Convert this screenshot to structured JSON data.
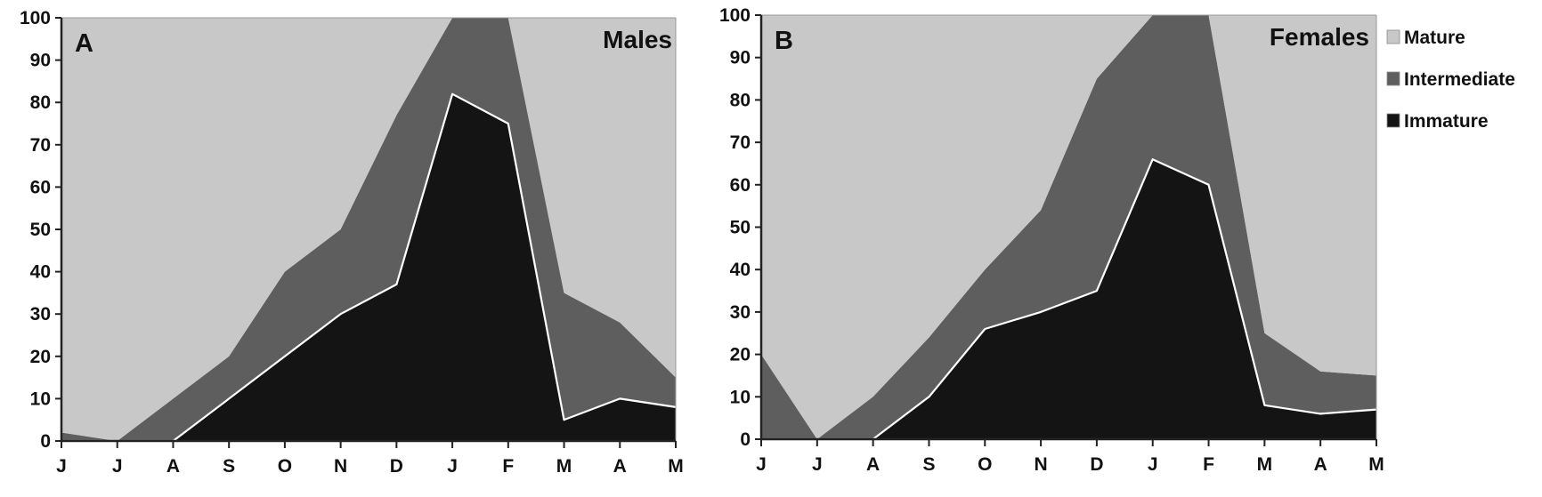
{
  "chart_data": [
    {
      "type": "area",
      "stacked": true,
      "panel_label": "A",
      "title": "Males",
      "categories": [
        "J",
        "J",
        "A",
        "S",
        "O",
        "N",
        "D",
        "J",
        "F",
        "M",
        "A",
        "M"
      ],
      "ylim": [
        0,
        100
      ],
      "yticks": [
        0,
        10,
        20,
        30,
        40,
        50,
        60,
        70,
        80,
        90,
        100
      ],
      "grid": false,
      "series": [
        {
          "name": "Immature",
          "color": "#141414",
          "values": [
            0,
            0,
            0,
            10,
            20,
            30,
            37,
            82,
            75,
            5,
            10,
            8
          ]
        },
        {
          "name": "Intermediate",
          "color": "#5e5e5e",
          "values": [
            2,
            0,
            10,
            10,
            20,
            20,
            40,
            18,
            25,
            30,
            18,
            7
          ]
        },
        {
          "name": "Mature",
          "color": "#c8c8c8",
          "values": [
            98,
            100,
            90,
            80,
            60,
            50,
            23,
            0,
            0,
            65,
            72,
            85
          ]
        }
      ]
    },
    {
      "type": "area",
      "stacked": true,
      "panel_label": "B",
      "title": "Females",
      "categories": [
        "J",
        "J",
        "A",
        "S",
        "O",
        "N",
        "D",
        "J",
        "F",
        "M",
        "A",
        "M"
      ],
      "ylim": [
        0,
        100
      ],
      "yticks": [
        0,
        10,
        20,
        30,
        40,
        50,
        60,
        70,
        80,
        90,
        100
      ],
      "grid": false,
      "series": [
        {
          "name": "Immature",
          "color": "#141414",
          "values": [
            0,
            0,
            0,
            10,
            26,
            30,
            35,
            66,
            60,
            8,
            6,
            7
          ]
        },
        {
          "name": "Intermediate",
          "color": "#5e5e5e",
          "values": [
            20,
            0,
            10,
            14,
            14,
            24,
            50,
            34,
            40,
            17,
            10,
            8
          ]
        },
        {
          "name": "Mature",
          "color": "#c8c8c8",
          "values": [
            80,
            100,
            90,
            76,
            60,
            46,
            15,
            0,
            0,
            75,
            84,
            85
          ]
        }
      ]
    }
  ],
  "legend": {
    "placement": "right",
    "items": [
      {
        "label": "Mature",
        "color": "#c8c8c8"
      },
      {
        "label": "Intermediate",
        "color": "#5e5e5e"
      },
      {
        "label": "Immature",
        "color": "#141414"
      }
    ]
  }
}
